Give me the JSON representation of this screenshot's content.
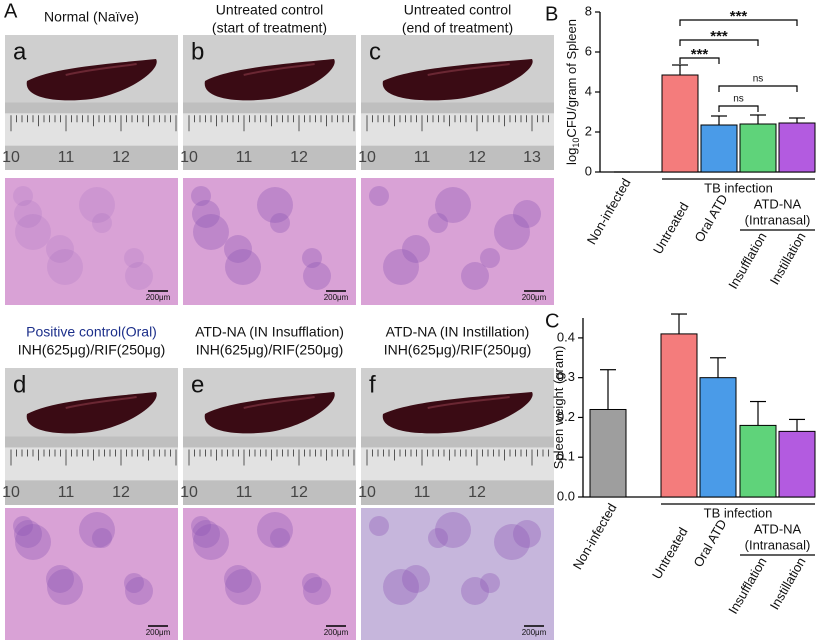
{
  "panel_label": "A",
  "photos": [
    {
      "letter": "a",
      "caption": [
        "Normal (Naïve)"
      ],
      "ruler": [
        "10",
        "11",
        "12"
      ],
      "scale": "200μm"
    },
    {
      "letter": "b",
      "caption": [
        "Untreated control",
        "(start of treatment)"
      ],
      "ruler": [
        "10",
        "11",
        "12"
      ],
      "scale": "200μm"
    },
    {
      "letter": "c",
      "caption": [
        "Untreated control",
        "(end of treatment)"
      ],
      "ruler": [
        "10",
        "11",
        "12",
        "13"
      ],
      "scale": "200μm"
    },
    {
      "letter": "d",
      "caption": [
        "Positive control(Oral)",
        "INH(625μg)/RIF(250μg)"
      ],
      "ruler": [
        "10",
        "11",
        "12"
      ],
      "scale": "200μm"
    },
    {
      "letter": "e",
      "caption": [
        "ATD-NA (IN Insufflation)",
        "INH(625μg)/RIF(250μg)"
      ],
      "ruler": [
        "10",
        "11",
        "12"
      ],
      "scale": "200μm"
    },
    {
      "letter": "f",
      "caption": [
        "ATD-NA (IN Instillation)",
        "INH(625μg)/RIF(250μg)"
      ],
      "ruler": [
        "10",
        "11",
        "12"
      ],
      "scale": "200μm"
    }
  ],
  "chart_data": [
    {
      "type": "bar",
      "label": "B",
      "y_label": {
        "main": "log",
        "sub": "10",
        "rest": "CFU/gram of Spleen"
      },
      "categories": [
        "Non-infected",
        "Untreated",
        "Oral ATD",
        "Insufflation",
        "Instillation"
      ],
      "values": [
        0,
        4.85,
        2.35,
        2.4,
        2.45
      ],
      "errors": [
        0,
        0.5,
        0.45,
        0.45,
        0.25
      ],
      "colors": [
        "#9e9e9e",
        "#f47c7c",
        "#4a9be8",
        "#5fd37a",
        "#b35be0"
      ],
      "ylim": [
        0,
        8
      ],
      "yticks": [
        0,
        2,
        4,
        6,
        8
      ],
      "groups": [
        {
          "label": [
            "TB infection"
          ],
          "from": "Untreated",
          "to": "Instillation"
        },
        {
          "label": [
            "ATD-NA",
            "(Intranasal)"
          ],
          "from": "Insufflation",
          "to": "Instillation"
        }
      ],
      "brackets": [
        {
          "from": "Untreated",
          "to": "Oral ATD",
          "label": "***"
        },
        {
          "from": "Untreated",
          "to": "Insufflation",
          "label": "***"
        },
        {
          "from": "Untreated",
          "to": "Instillation",
          "label": "***"
        },
        {
          "from": "Oral ATD",
          "to": "Insufflation",
          "label": "ns"
        },
        {
          "from": "Oral ATD",
          "to": "Instillation",
          "label": "ns"
        }
      ]
    },
    {
      "type": "bar",
      "label": "C",
      "y_label": {
        "main": "Spleen weight (gram)"
      },
      "categories": [
        "Non-infected",
        "Untreated",
        "Oral ATD",
        "Insufflation",
        "Instillation"
      ],
      "values": [
        0.22,
        0.41,
        0.3,
        0.18,
        0.165
      ],
      "errors": [
        0.1,
        0.05,
        0.05,
        0.06,
        0.03
      ],
      "colors": [
        "#9e9e9e",
        "#f47c7c",
        "#4a9be8",
        "#5fd37a",
        "#b35be0"
      ],
      "ylim": [
        0,
        0.45
      ],
      "yticks": [
        {
          "value": 0,
          "label": "0.0"
        },
        0.1,
        0.2,
        0.3,
        0.4
      ],
      "groups": [
        {
          "label": [
            "TB infection"
          ],
          "from": "Untreated",
          "to": "Instillation"
        },
        {
          "label": [
            "ATD-NA",
            "(Intranasal)"
          ],
          "from": "Insufflation",
          "to": "Instillation"
        }
      ]
    }
  ]
}
